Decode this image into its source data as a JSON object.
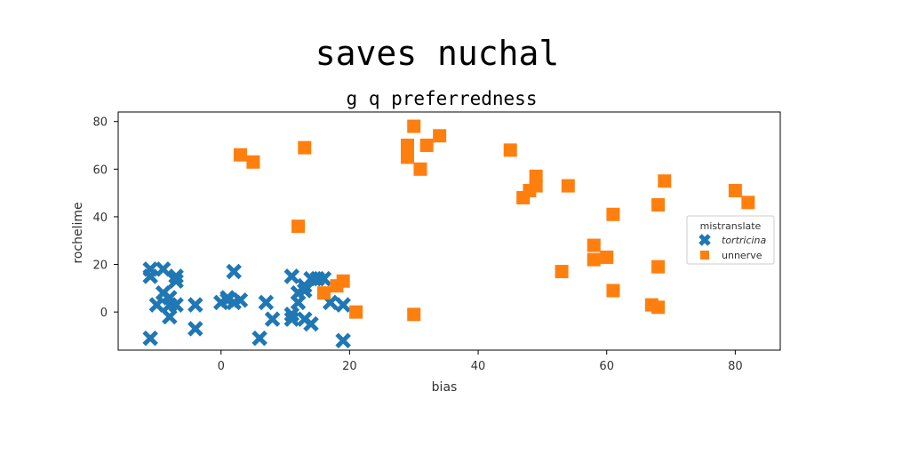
{
  "chart_data": {
    "type": "scatter",
    "title": "saves nuchal",
    "subtitle": "g q preferredness",
    "xlabel": "bias",
    "ylabel": "rochelime",
    "xlim": [
      -16,
      87
    ],
    "ylim": [
      -16,
      84
    ],
    "xticks": [
      "0",
      "20",
      "40",
      "60",
      "80"
    ],
    "yticks": [
      "0",
      "20",
      "40",
      "60",
      "80"
    ],
    "grid": false,
    "legend": {
      "title": "mistranslate",
      "placement": "center-right"
    },
    "series": [
      {
        "name": "tortricina",
        "marker": "x",
        "color": "#1f77b4",
        "points": [
          [
            -11,
            18
          ],
          [
            -11,
            15
          ],
          [
            -9,
            18
          ],
          [
            -7,
            15
          ],
          [
            -7,
            13
          ],
          [
            -10,
            3
          ],
          [
            -8,
            3
          ],
          [
            -9,
            8
          ],
          [
            -8,
            6
          ],
          [
            -8,
            -2
          ],
          [
            -7,
            3
          ],
          [
            -4,
            3
          ],
          [
            -11,
            -11
          ],
          [
            2,
            17
          ],
          [
            1,
            6
          ],
          [
            0,
            4
          ],
          [
            1,
            5
          ],
          [
            2,
            4
          ],
          [
            3,
            5
          ],
          [
            -4,
            -7
          ],
          [
            7,
            4
          ],
          [
            8,
            -3
          ],
          [
            6,
            -11
          ],
          [
            11,
            15
          ],
          [
            11,
            -1
          ],
          [
            12,
            4
          ],
          [
            12,
            8
          ],
          [
            13,
            9
          ],
          [
            13,
            11
          ],
          [
            14,
            14
          ],
          [
            15,
            14
          ],
          [
            16,
            14
          ],
          [
            11,
            -3
          ],
          [
            13,
            -3
          ],
          [
            14,
            -5
          ],
          [
            17,
            4
          ],
          [
            19,
            3
          ],
          [
            19,
            -12
          ]
        ]
      },
      {
        "name": "unnerve",
        "marker": "s",
        "color": "#ff7f0e",
        "points": [
          [
            3,
            66
          ],
          [
            5,
            63
          ],
          [
            13,
            69
          ],
          [
            12,
            36
          ],
          [
            18,
            11
          ],
          [
            19,
            13
          ],
          [
            16,
            8
          ],
          [
            21,
            0
          ],
          [
            30,
            78
          ],
          [
            29,
            70
          ],
          [
            29,
            65
          ],
          [
            31,
            60
          ],
          [
            32,
            70
          ],
          [
            34,
            74
          ],
          [
            30,
            -1
          ],
          [
            45,
            68
          ],
          [
            47,
            48
          ],
          [
            48,
            51
          ],
          [
            49,
            53
          ],
          [
            49,
            57
          ],
          [
            54,
            53
          ],
          [
            53,
            17
          ],
          [
            58,
            28
          ],
          [
            58,
            22
          ],
          [
            60,
            23
          ],
          [
            61,
            41
          ],
          [
            61,
            9
          ],
          [
            67,
            3
          ],
          [
            68,
            2
          ],
          [
            68,
            19
          ],
          [
            68,
            45
          ],
          [
            69,
            55
          ],
          [
            80,
            51
          ],
          [
            82,
            46
          ]
        ]
      }
    ]
  }
}
